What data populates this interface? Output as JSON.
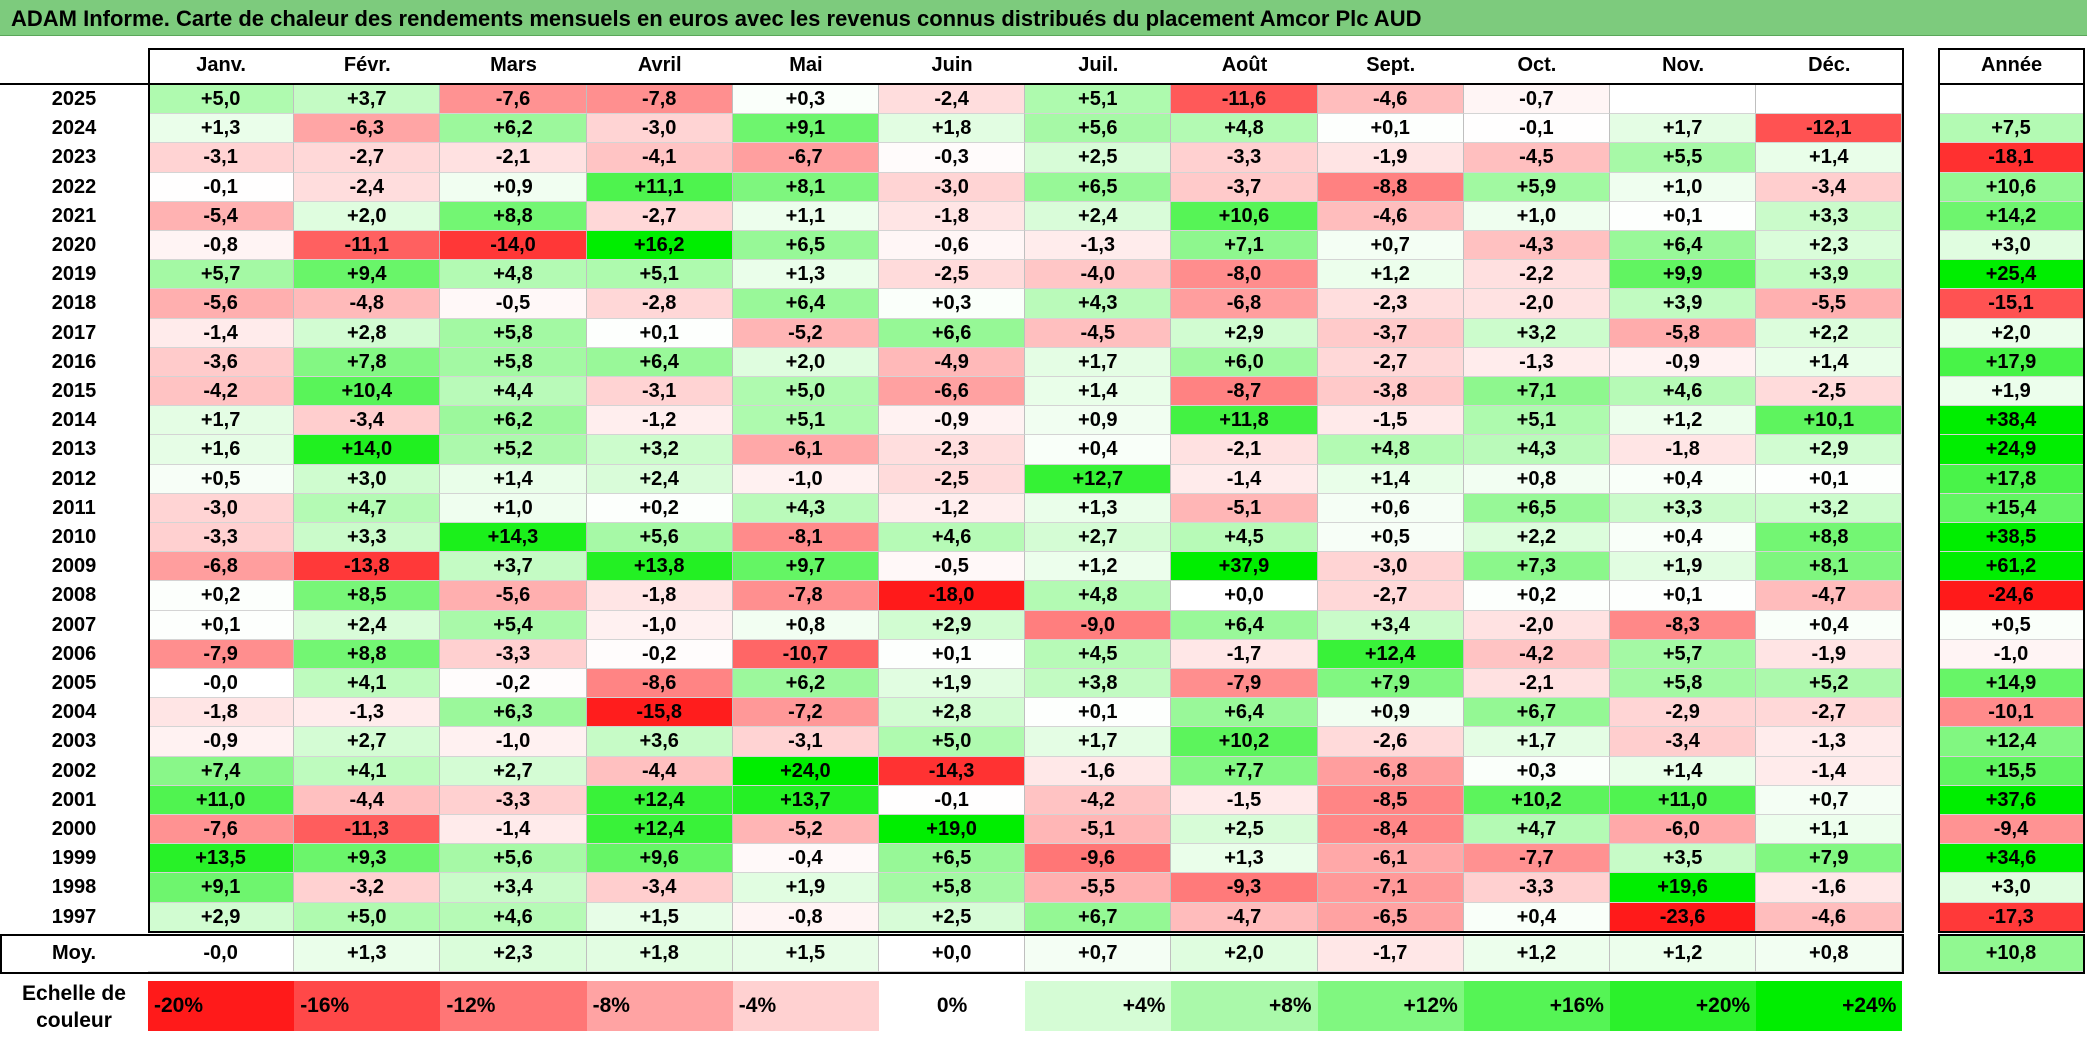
{
  "title": "ADAM Informe. Carte de chaleur des rendements mensuels en euros avec les revenus connus distribués du placement Amcor Plc AUD",
  "colors": {
    "title_bg": "#7dcb7d",
    "negative_max": "#ff1a1a",
    "neutral": "#ffffff",
    "positive_max": "#00ee00"
  },
  "chart_data": {
    "type": "heatmap",
    "months": [
      "Janv.",
      "Févr.",
      "Mars",
      "Avril",
      "Mai",
      "Juin",
      "Juil.",
      "Août",
      "Sept.",
      "Oct.",
      "Nov.",
      "Déc."
    ],
    "year_header": "Année",
    "rows": [
      {
        "year": "2025",
        "values": [
          "+5,0",
          "+3,7",
          "-7,6",
          "-7,8",
          "+0,3",
          "-2,4",
          "+5,1",
          "-11,6",
          "-4,6",
          "-0,7",
          "",
          ""
        ],
        "annual": ""
      },
      {
        "year": "2024",
        "values": [
          "+1,3",
          "-6,3",
          "+6,2",
          "-3,0",
          "+9,1",
          "+1,8",
          "+5,6",
          "+4,8",
          "+0,1",
          "-0,1",
          "+1,7",
          "-12,1"
        ],
        "annual": "+7,5"
      },
      {
        "year": "2023",
        "values": [
          "-3,1",
          "-2,7",
          "-2,1",
          "-4,1",
          "-6,7",
          "-0,3",
          "+2,5",
          "-3,3",
          "-1,9",
          "-4,5",
          "+5,5",
          "+1,4"
        ],
        "annual": "-18,1"
      },
      {
        "year": "2022",
        "values": [
          "-0,1",
          "-2,4",
          "+0,9",
          "+11,1",
          "+8,1",
          "-3,0",
          "+6,5",
          "-3,7",
          "-8,8",
          "+5,9",
          "+1,0",
          "-3,4"
        ],
        "annual": "+10,6"
      },
      {
        "year": "2021",
        "values": [
          "-5,4",
          "+2,0",
          "+8,8",
          "-2,7",
          "+1,1",
          "-1,8",
          "+2,4",
          "+10,6",
          "-4,6",
          "+1,0",
          "+0,1",
          "+3,3"
        ],
        "annual": "+14,2"
      },
      {
        "year": "2020",
        "values": [
          "-0,8",
          "-11,1",
          "-14,0",
          "+16,2",
          "+6,5",
          "-0,6",
          "-1,3",
          "+7,1",
          "+0,7",
          "-4,3",
          "+6,4",
          "+2,3"
        ],
        "annual": "+3,0"
      },
      {
        "year": "2019",
        "values": [
          "+5,7",
          "+9,4",
          "+4,8",
          "+5,1",
          "+1,3",
          "-2,5",
          "-4,0",
          "-8,0",
          "+1,2",
          "-2,2",
          "+9,9",
          "+3,9"
        ],
        "annual": "+25,4"
      },
      {
        "year": "2018",
        "values": [
          "-5,6",
          "-4,8",
          "-0,5",
          "-2,8",
          "+6,4",
          "+0,3",
          "+4,3",
          "-6,8",
          "-2,3",
          "-2,0",
          "+3,9",
          "-5,5"
        ],
        "annual": "-15,1"
      },
      {
        "year": "2017",
        "values": [
          "-1,4",
          "+2,8",
          "+5,8",
          "+0,1",
          "-5,2",
          "+6,6",
          "-4,5",
          "+2,9",
          "-3,7",
          "+3,2",
          "-5,8",
          "+2,2"
        ],
        "annual": "+2,0"
      },
      {
        "year": "2016",
        "values": [
          "-3,6",
          "+7,8",
          "+5,8",
          "+6,4",
          "+2,0",
          "-4,9",
          "+1,7",
          "+6,0",
          "-2,7",
          "-1,3",
          "-0,9",
          "+1,4"
        ],
        "annual": "+17,9"
      },
      {
        "year": "2015",
        "values": [
          "-4,2",
          "+10,4",
          "+4,4",
          "-3,1",
          "+5,0",
          "-6,6",
          "+1,4",
          "-8,7",
          "-3,8",
          "+7,1",
          "+4,6",
          "-2,5"
        ],
        "annual": "+1,9"
      },
      {
        "year": "2014",
        "values": [
          "+1,7",
          "-3,4",
          "+6,2",
          "-1,2",
          "+5,1",
          "-0,9",
          "+0,9",
          "+11,8",
          "-1,5",
          "+5,1",
          "+1,2",
          "+10,1"
        ],
        "annual": "+38,4"
      },
      {
        "year": "2013",
        "values": [
          "+1,6",
          "+14,0",
          "+5,2",
          "+3,2",
          "-6,1",
          "-2,3",
          "+0,4",
          "-2,1",
          "+4,8",
          "+4,3",
          "-1,8",
          "+2,9"
        ],
        "annual": "+24,9"
      },
      {
        "year": "2012",
        "values": [
          "+0,5",
          "+3,0",
          "+1,4",
          "+2,4",
          "-1,0",
          "-2,5",
          "+12,7",
          "-1,4",
          "+1,4",
          "+0,8",
          "+0,4",
          "+0,1"
        ],
        "annual": "+17,8"
      },
      {
        "year": "2011",
        "values": [
          "-3,0",
          "+4,7",
          "+1,0",
          "+0,2",
          "+4,3",
          "-1,2",
          "+1,3",
          "-5,1",
          "+0,6",
          "+6,5",
          "+3,3",
          "+3,2"
        ],
        "annual": "+15,4"
      },
      {
        "year": "2010",
        "values": [
          "-3,3",
          "+3,3",
          "+14,3",
          "+5,6",
          "-8,1",
          "+4,6",
          "+2,7",
          "+4,5",
          "+0,5",
          "+2,2",
          "+0,4",
          "+8,8"
        ],
        "annual": "+38,5"
      },
      {
        "year": "2009",
        "values": [
          "-6,8",
          "-13,8",
          "+3,7",
          "+13,8",
          "+9,7",
          "-0,5",
          "+1,2",
          "+37,9",
          "-3,0",
          "+7,3",
          "+1,9",
          "+8,1"
        ],
        "annual": "+61,2"
      },
      {
        "year": "2008",
        "values": [
          "+0,2",
          "+8,5",
          "-5,6",
          "-1,8",
          "-7,8",
          "-18,0",
          "+4,8",
          "+0,0",
          "-2,7",
          "+0,2",
          "+0,1",
          "-4,7"
        ],
        "annual": "-24,6"
      },
      {
        "year": "2007",
        "values": [
          "+0,1",
          "+2,4",
          "+5,4",
          "-1,0",
          "+0,8",
          "+2,9",
          "-9,0",
          "+6,4",
          "+3,4",
          "-2,0",
          "-8,3",
          "+0,4"
        ],
        "annual": "+0,5"
      },
      {
        "year": "2006",
        "values": [
          "-7,9",
          "+8,8",
          "-3,3",
          "-0,2",
          "-10,7",
          "+0,1",
          "+4,5",
          "-1,7",
          "+12,4",
          "-4,2",
          "+5,7",
          "-1,9"
        ],
        "annual": "-1,0"
      },
      {
        "year": "2005",
        "values": [
          "-0,0",
          "+4,1",
          "-0,2",
          "-8,6",
          "+6,2",
          "+1,9",
          "+3,8",
          "-7,9",
          "+7,9",
          "-2,1",
          "+5,8",
          "+5,2"
        ],
        "annual": "+14,9"
      },
      {
        "year": "2004",
        "values": [
          "-1,8",
          "-1,3",
          "+6,3",
          "-15,8",
          "-7,2",
          "+2,8",
          "+0,1",
          "+6,4",
          "+0,9",
          "+6,7",
          "-2,9",
          "-2,7"
        ],
        "annual": "-10,1"
      },
      {
        "year": "2003",
        "values": [
          "-0,9",
          "+2,7",
          "-1,0",
          "+3,6",
          "-3,1",
          "+5,0",
          "+1,7",
          "+10,2",
          "-2,6",
          "+1,7",
          "-3,4",
          "-1,3"
        ],
        "annual": "+12,4"
      },
      {
        "year": "2002",
        "values": [
          "+7,4",
          "+4,1",
          "+2,7",
          "-4,4",
          "+24,0",
          "-14,3",
          "-1,6",
          "+7,7",
          "-6,8",
          "+0,3",
          "+1,4",
          "-1,4"
        ],
        "annual": "+15,5"
      },
      {
        "year": "2001",
        "values": [
          "+11,0",
          "-4,4",
          "-3,3",
          "+12,4",
          "+13,7",
          "-0,1",
          "-4,2",
          "-1,5",
          "-8,5",
          "+10,2",
          "+11,0",
          "+0,7"
        ],
        "annual": "+37,6"
      },
      {
        "year": "2000",
        "values": [
          "-7,6",
          "-11,3",
          "-1,4",
          "+12,4",
          "-5,2",
          "+19,0",
          "-5,1",
          "+2,5",
          "-8,4",
          "+4,7",
          "-6,0",
          "+1,1"
        ],
        "annual": "-9,4"
      },
      {
        "year": "1999",
        "values": [
          "+13,5",
          "+9,3",
          "+5,6",
          "+9,6",
          "-0,4",
          "+6,5",
          "-9,6",
          "+1,3",
          "-6,1",
          "-7,7",
          "+3,5",
          "+7,9"
        ],
        "annual": "+34,6"
      },
      {
        "year": "1998",
        "values": [
          "+9,1",
          "-3,2",
          "+3,4",
          "-3,4",
          "+1,9",
          "+5,8",
          "-5,5",
          "-9,3",
          "-7,1",
          "-3,3",
          "+19,6",
          "-1,6"
        ],
        "annual": "+3,0"
      },
      {
        "year": "1997",
        "values": [
          "+2,9",
          "+5,0",
          "+4,6",
          "+1,5",
          "-0,8",
          "+2,5",
          "+6,7",
          "-4,7",
          "-6,5",
          "+0,4",
          "-23,6",
          "-4,6"
        ],
        "annual": "-17,3"
      }
    ],
    "average": {
      "label": "Moy.",
      "values": [
        "-0,0",
        "+1,3",
        "+2,3",
        "+1,8",
        "+1,5",
        "+0,0",
        "+0,7",
        "+2,0",
        "-1,7",
        "+1,2",
        "+1,2",
        "+0,8"
      ],
      "annual": "+10,8"
    },
    "scale": {
      "label": "Echelle de couleur",
      "steps": [
        "-20%",
        "-16%",
        "-12%",
        "-8%",
        "-4%",
        "0%",
        "+4%",
        "+8%",
        "+12%",
        "+16%",
        "+20%",
        "+24%"
      ],
      "values": [
        -20,
        -16,
        -12,
        -8,
        -4,
        0,
        4,
        8,
        12,
        16,
        20,
        24
      ]
    }
  }
}
